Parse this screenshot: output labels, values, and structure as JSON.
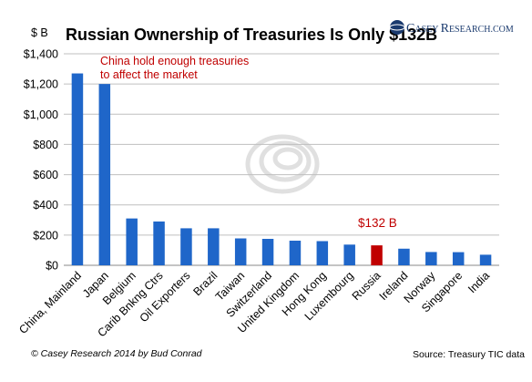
{
  "chart_data": {
    "type": "bar",
    "title": "Russian Ownership of Treasuries Is Only $132B",
    "ylabel": "$ B",
    "xlabel": "",
    "ylim": [
      0,
      1400
    ],
    "yticks": [
      "$0",
      "$200",
      "$400",
      "$600",
      "$800",
      "$1,000",
      "$1,200",
      "$1,400"
    ],
    "ytick_values": [
      0,
      200,
      400,
      600,
      800,
      1000,
      1200,
      1400
    ],
    "grid": true,
    "categories": [
      "China, Mainland",
      "Japan",
      "Belgium",
      "Carib Bnkng Ctrs",
      "Oil Exporters",
      "Brazil",
      "Taiwan",
      "Switzerland",
      "United Kingdom",
      "Hong Kong",
      "Luxembourg",
      "Russia",
      "Ireland",
      "Norway",
      "Singapore",
      "India"
    ],
    "values": [
      1270,
      1200,
      310,
      290,
      245,
      245,
      178,
      175,
      163,
      160,
      137,
      132,
      110,
      88,
      87,
      70
    ],
    "colors": {
      "default": "#1f66c9",
      "highlight": "#c00000"
    },
    "highlight_index": 11,
    "annotations": {
      "china_note_line1": "China hold enough treasuries",
      "china_note_line2": "to affect the market",
      "russia_label": "$132 B"
    }
  },
  "logo": {
    "text_caps1": "C",
    "text_small1": "ASEY ",
    "text_caps2": "R",
    "text_small2": "ESEARCH.COM"
  },
  "footer": {
    "left": "© Casey Research 2014 by Bud Conrad",
    "right": "Source: Treasury TIC data"
  }
}
